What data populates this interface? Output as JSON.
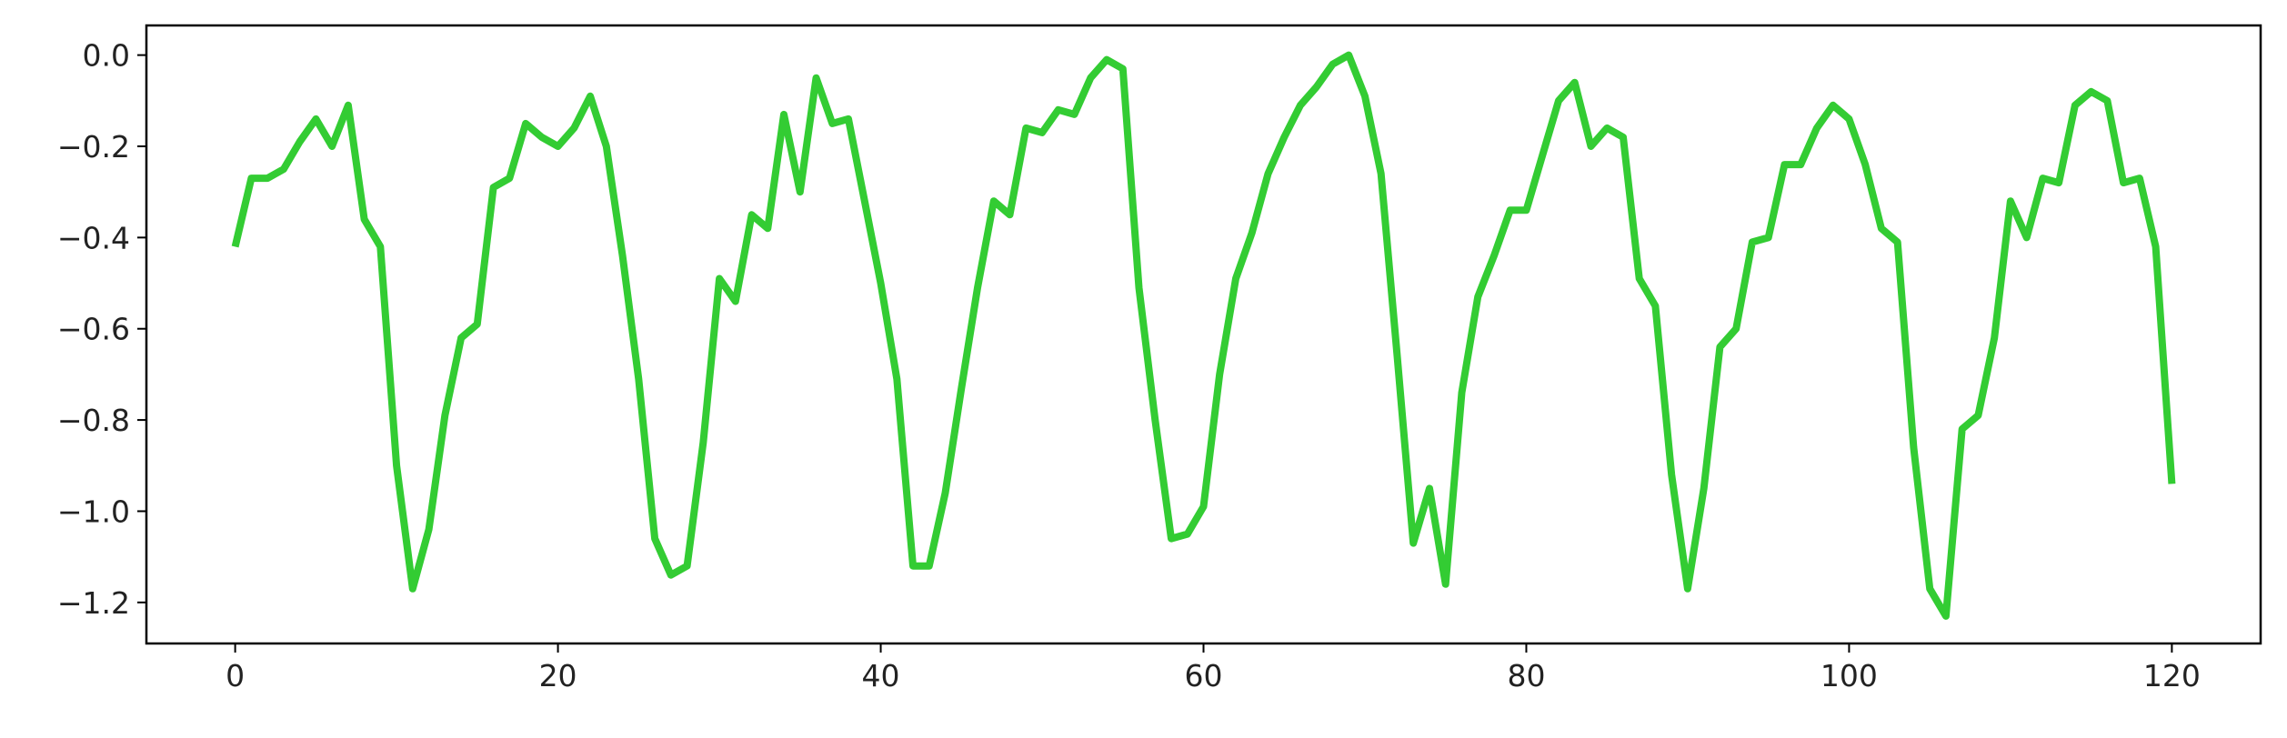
{
  "chart_data": {
    "type": "line",
    "title": "",
    "xlabel": "",
    "ylabel": "",
    "xlim": [
      -5.5,
      125.5
    ],
    "ylim": [
      -1.29,
      0.065
    ],
    "grid": false,
    "legend": "none",
    "xticks": [
      0,
      20,
      40,
      60,
      80,
      100,
      120
    ],
    "xtick_labels": [
      "0",
      "20",
      "40",
      "60",
      "80",
      "100",
      "120"
    ],
    "yticks": [
      0.0,
      -0.2,
      -0.4,
      -0.6,
      -0.8,
      -1.0,
      -1.2
    ],
    "ytick_labels": [
      "0.0",
      "−0.2",
      "−0.4",
      "−0.6",
      "−0.8",
      "−1.0",
      "−1.2"
    ],
    "series": [
      {
        "color": "#33cc33",
        "x": [
          0,
          1,
          2,
          3,
          4,
          5,
          6,
          7,
          8,
          9,
          10,
          11,
          12,
          13,
          14,
          15,
          16,
          17,
          18,
          19,
          20,
          21,
          22,
          23,
          24,
          25,
          26,
          27,
          28,
          29,
          30,
          31,
          32,
          33,
          34,
          35,
          36,
          37,
          38,
          39,
          40,
          41,
          42,
          43,
          44,
          45,
          46,
          47,
          48,
          49,
          50,
          51,
          52,
          53,
          54,
          55,
          56,
          57,
          58,
          59,
          60,
          61,
          62,
          63,
          64,
          65,
          66,
          67,
          68,
          69,
          70,
          71,
          72,
          73,
          74,
          75,
          76,
          77,
          78,
          79,
          80,
          81,
          82,
          83,
          84,
          85,
          86,
          87,
          88,
          89,
          90,
          91,
          92,
          93,
          94,
          95,
          96,
          97,
          98,
          99,
          100,
          101,
          102,
          103,
          104,
          105,
          106,
          107,
          108,
          109,
          110,
          111,
          112,
          113,
          114,
          115,
          116,
          117,
          118,
          119,
          120
        ],
        "values": [
          -0.42,
          -0.27,
          -0.27,
          -0.25,
          -0.19,
          -0.14,
          -0.2,
          -0.11,
          -0.36,
          -0.42,
          -0.9,
          -1.17,
          -1.04,
          -0.79,
          -0.62,
          -0.59,
          -0.29,
          -0.27,
          -0.15,
          -0.18,
          -0.2,
          -0.16,
          -0.09,
          -0.2,
          -0.44,
          -0.71,
          -1.06,
          -1.14,
          -1.12,
          -0.85,
          -0.49,
          -0.54,
          -0.35,
          -0.38,
          -0.13,
          -0.3,
          -0.05,
          -0.15,
          -0.14,
          -0.32,
          -0.5,
          -0.71,
          -1.12,
          -1.12,
          -0.96,
          -0.73,
          -0.51,
          -0.32,
          -0.35,
          -0.16,
          -0.17,
          -0.12,
          -0.13,
          -0.05,
          -0.01,
          -0.03,
          -0.51,
          -0.8,
          -1.06,
          -1.05,
          -0.99,
          -0.7,
          -0.49,
          -0.39,
          -0.26,
          -0.18,
          -0.11,
          -0.07,
          -0.02,
          0.0,
          -0.09,
          -0.26,
          -0.66,
          -1.07,
          -0.95,
          -1.16,
          -0.74,
          -0.53,
          -0.44,
          -0.34,
          -0.34,
          -0.22,
          -0.1,
          -0.06,
          -0.2,
          -0.16,
          -0.18,
          -0.49,
          -0.55,
          -0.92,
          -1.17,
          -0.95,
          -0.64,
          -0.6,
          -0.41,
          -0.4,
          -0.24,
          -0.24,
          -0.16,
          -0.11,
          -0.14,
          -0.24,
          -0.38,
          -0.41,
          -0.86,
          -1.17,
          -1.23,
          -0.82,
          -0.79,
          -0.62,
          -0.32,
          -0.4,
          -0.27,
          -0.28,
          -0.11,
          -0.08,
          -0.1,
          -0.28,
          -0.27,
          -0.42,
          -0.94
        ]
      }
    ]
  }
}
